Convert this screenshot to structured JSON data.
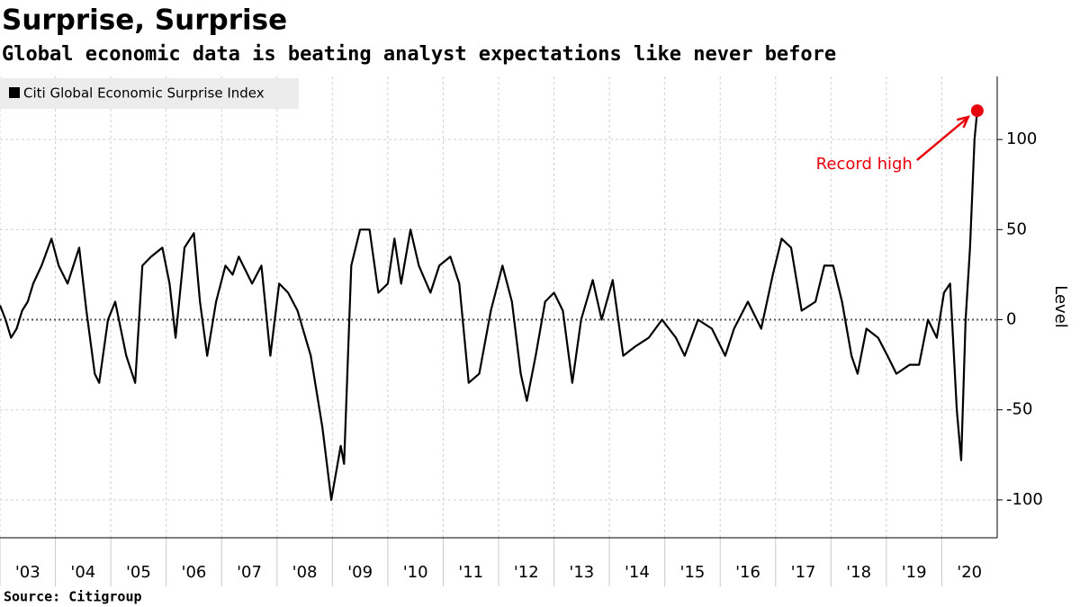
{
  "chart_data": {
    "type": "line",
    "title": "Surprise, Surprise",
    "subtitle": "Global economic data is beating analyst expectations like never before",
    "source": "Source:  Citigroup",
    "y_label": "Level",
    "annotation": "Record high",
    "highlight_color": "#e8000b",
    "legend_position": "top-left",
    "grid": true,
    "x": [
      2003.0,
      2003.1,
      2003.2,
      2003.3,
      2003.4,
      2003.5,
      2003.6,
      2003.75,
      2003.93,
      2004.06,
      2004.22,
      2004.43,
      2004.56,
      2004.71,
      2004.79,
      2004.95,
      2005.08,
      2005.28,
      2005.44,
      2005.57,
      2005.73,
      2005.93,
      2006.06,
      2006.17,
      2006.33,
      2006.5,
      2006.61,
      2006.74,
      2006.9,
      2007.07,
      2007.2,
      2007.31,
      2007.55,
      2007.72,
      2007.88,
      2008.04,
      2008.2,
      2008.37,
      2008.61,
      2008.82,
      2008.98,
      2009.15,
      2009.21,
      2009.34,
      2009.5,
      2009.67,
      2009.83,
      2010.0,
      2010.12,
      2010.24,
      2010.41,
      2010.56,
      2010.77,
      2010.93,
      2011.13,
      2011.29,
      2011.46,
      2011.65,
      2011.86,
      2012.07,
      2012.24,
      2012.4,
      2012.51,
      2012.67,
      2012.84,
      2013.0,
      2013.16,
      2013.33,
      2013.49,
      2013.7,
      2013.86,
      2014.06,
      2014.25,
      2014.46,
      2014.71,
      2014.95,
      2015.2,
      2015.36,
      2015.6,
      2015.85,
      2016.09,
      2016.25,
      2016.5,
      2016.74,
      2016.95,
      2017.11,
      2017.28,
      2017.47,
      2017.72,
      2017.88,
      2018.04,
      2018.2,
      2018.37,
      2018.48,
      2018.64,
      2018.85,
      2019.02,
      2019.18,
      2019.42,
      2019.59,
      2019.75,
      2019.91,
      2020.04,
      2020.15,
      2020.27,
      2020.35,
      2020.43,
      2020.51,
      2020.59,
      2020.64
    ],
    "series": [
      {
        "name": "Citi Global Economic Surprise Index",
        "color": "#000000",
        "values": [
          8,
          0,
          -10,
          -5,
          5,
          10,
          20,
          30,
          45,
          30,
          20,
          40,
          5,
          -30,
          -35,
          0,
          10,
          -20,
          -35,
          30,
          35,
          40,
          20,
          -10,
          40,
          48,
          10,
          -20,
          10,
          30,
          25,
          35,
          20,
          30,
          -20,
          20,
          15,
          5,
          -20,
          -60,
          -100,
          -70,
          -80,
          30,
          50,
          50,
          15,
          20,
          45,
          20,
          50,
          30,
          15,
          30,
          35,
          20,
          -35,
          -30,
          5,
          30,
          10,
          -30,
          -45,
          -20,
          10,
          15,
          5,
          -35,
          0,
          22,
          0,
          22,
          -20,
          -15,
          -10,
          0,
          -10,
          -20,
          0,
          -5,
          -20,
          -5,
          10,
          -5,
          25,
          45,
          40,
          5,
          10,
          30,
          30,
          10,
          -20,
          -30,
          -5,
          -10,
          -20,
          -30,
          -25,
          -25,
          0,
          -10,
          15,
          20,
          -50,
          -78,
          0,
          40,
          100,
          116
        ]
      }
    ],
    "xlim": [
      2003,
      2021
    ],
    "xticks": [
      {
        "value": 2003,
        "label": "'03"
      },
      {
        "value": 2004,
        "label": "'04"
      },
      {
        "value": 2005,
        "label": "'05"
      },
      {
        "value": 2006,
        "label": "'06"
      },
      {
        "value": 2007,
        "label": "'07"
      },
      {
        "value": 2008,
        "label": "'08"
      },
      {
        "value": 2009,
        "label": "'09"
      },
      {
        "value": 2010,
        "label": "'10"
      },
      {
        "value": 2011,
        "label": "'11"
      },
      {
        "value": 2012,
        "label": "'12"
      },
      {
        "value": 2013,
        "label": "'13"
      },
      {
        "value": 2014,
        "label": "'14"
      },
      {
        "value": 2015,
        "label": "'15"
      },
      {
        "value": 2016,
        "label": "'16"
      },
      {
        "value": 2017,
        "label": "'17"
      },
      {
        "value": 2018,
        "label": "'18"
      },
      {
        "value": 2019,
        "label": "'19"
      },
      {
        "value": 2020,
        "label": "'20"
      }
    ],
    "ylim": [
      -121,
      135
    ],
    "yticks": [
      -100,
      -50,
      0,
      50,
      100
    ]
  }
}
